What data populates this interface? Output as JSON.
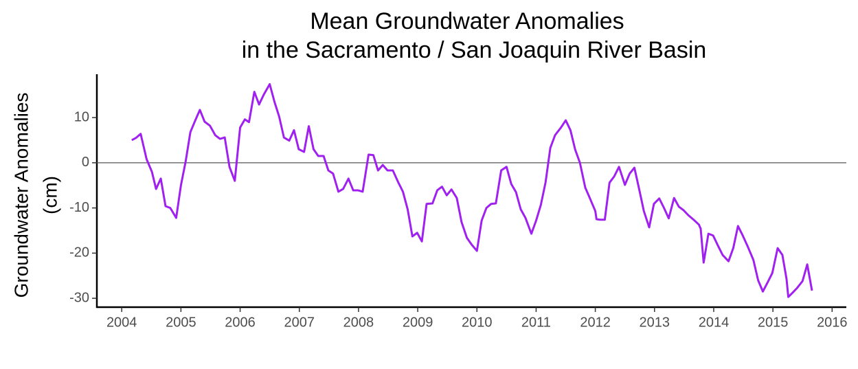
{
  "chart_data": {
    "type": "line",
    "title": [
      "Mean Groundwater Anomalies",
      "in the Sacramento / San Joaquin River Basin"
    ],
    "y_label": [
      "Groundwater Anomalies",
      "(cm)"
    ],
    "x": [
      2004.17,
      2004.24,
      2004.32,
      2004.42,
      2004.51,
      2004.58,
      2004.66,
      2004.74,
      2004.82,
      2004.92,
      2005.0,
      2005.08,
      2005.16,
      2005.24,
      2005.32,
      2005.4,
      2005.49,
      2005.58,
      2005.66,
      2005.74,
      2005.82,
      2005.91,
      2006.0,
      2006.08,
      2006.15,
      2006.24,
      2006.32,
      2006.4,
      2006.5,
      2006.58,
      2006.66,
      2006.74,
      2006.83,
      2006.91,
      2006.99,
      2007.08,
      2007.16,
      2007.24,
      2007.32,
      2007.41,
      2007.49,
      2007.57,
      2007.66,
      2007.74,
      2007.83,
      2007.91,
      2007.99,
      2008.07,
      2008.17,
      2008.25,
      2008.33,
      2008.41,
      2008.49,
      2008.58,
      2008.67,
      2008.75,
      2008.83,
      2008.91,
      2008.99,
      2009.07,
      2009.15,
      2009.25,
      2009.33,
      2009.41,
      2009.49,
      2009.57,
      2009.66,
      2009.74,
      2009.83,
      2009.91,
      2010.0,
      2010.08,
      2010.16,
      2010.24,
      2010.32,
      2010.41,
      2010.5,
      2010.58,
      2010.66,
      2010.74,
      2010.82,
      2010.92,
      2011.0,
      2011.08,
      2011.16,
      2011.24,
      2011.32,
      2011.42,
      2011.5,
      2011.58,
      2011.66,
      2011.74,
      2011.83,
      2011.91,
      2012.0,
      2012.02,
      2012.08,
      2012.16,
      2012.24,
      2012.32,
      2012.4,
      2012.5,
      2012.58,
      2012.66,
      2012.74,
      2012.82,
      2012.91,
      2012.99,
      2013.08,
      2013.16,
      2013.24,
      2013.33,
      2013.41,
      2013.49,
      2013.57,
      2013.66,
      2013.75,
      2013.78,
      2013.83,
      2013.91,
      2013.99,
      2014.07,
      2014.15,
      2014.25,
      2014.33,
      2014.41,
      2014.49,
      2014.57,
      2014.67,
      2014.75,
      2014.83,
      2014.91,
      2014.99,
      2015.08,
      2015.16,
      2015.23,
      2015.26,
      2015.33,
      2015.41,
      2015.5,
      2015.58,
      2015.66
    ],
    "values": [
      5.0,
      5.5,
      6.4,
      0.8,
      -2,
      -5.8,
      -3.5,
      -9.6,
      -10,
      -12.2,
      -5,
      0.3,
      6.8,
      9.3,
      11.7,
      9.1,
      8.2,
      6.1,
      5.3,
      5.6,
      -0.9,
      -4,
      7.8,
      9.6,
      9,
      15.7,
      12.9,
      15.1,
      17.4,
      13.5,
      10.2,
      5.6,
      4.9,
      7.2,
      3,
      2.4,
      8.1,
      3,
      1.5,
      1.5,
      -1.7,
      -2.4,
      -6.4,
      -5.8,
      -3.5,
      -6.1,
      -6.1,
      -6.4,
      1.8,
      1.7,
      -1.7,
      -0.5,
      -1.7,
      -1.7,
      -4.3,
      -6.4,
      -10.3,
      -16.3,
      -15.5,
      -17.4,
      -9.1,
      -9,
      -6.1,
      -5.3,
      -7.2,
      -5.9,
      -7.8,
      -13.1,
      -16.6,
      -18.1,
      -19.5,
      -12.8,
      -10,
      -9.1,
      -9,
      -1.7,
      -0.9,
      -4.7,
      -6.5,
      -10.3,
      -12.2,
      -15.7,
      -12.8,
      -9.3,
      -4.3,
      3.3,
      6.1,
      7.8,
      9.4,
      7.2,
      2.9,
      0,
      -5.5,
      -7.9,
      -10.7,
      -12.5,
      -12.6,
      -12.6,
      -4.4,
      -3,
      -0.9,
      -4.9,
      -2.4,
      -1.1,
      -5.8,
      -10.7,
      -14.3,
      -9.1,
      -7.9,
      -10,
      -12.3,
      -7.8,
      -9.7,
      -10.5,
      -11.6,
      -12.6,
      -13.7,
      -14.6,
      -22.1,
      -15.7,
      -16.1,
      -18.3,
      -20.4,
      -21.8,
      -18.9,
      -14,
      -16.1,
      -18.4,
      -21.5,
      -26,
      -28.5,
      -26.5,
      -24.4,
      -18.9,
      -20.4,
      -25.7,
      -29.7,
      -28.8,
      -27.7,
      -26.2,
      -22.5,
      -28.3
    ],
    "color": "#a020f0",
    "hline": 0,
    "xlim": [
      2003.58,
      2016.24
    ],
    "xticks": [
      2004,
      2005,
      2006,
      2007,
      2008,
      2009,
      2010,
      2011,
      2012,
      2013,
      2014,
      2015,
      2016
    ],
    "ylim": [
      -31.96,
      19.6
    ],
    "yticks": [
      -30,
      -20,
      -10,
      0,
      10
    ]
  }
}
